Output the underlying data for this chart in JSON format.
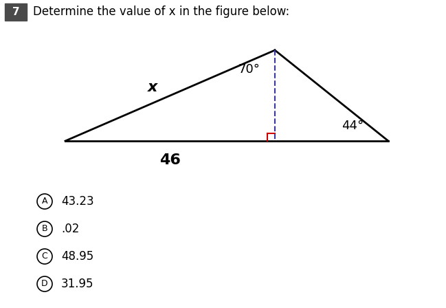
{
  "title_number": "7",
  "title_text": "Determine the value of x in the figure below:",
  "title_number_bg": "#4a4a4a",
  "title_number_color": "#ffffff",
  "base_label": "46",
  "left_side_label": "x",
  "angle1_label": "70°",
  "angle2_label": "44°",
  "triangle_color": "#000000",
  "altitude_color": "#3333cc",
  "right_angle_color": "#cc0000",
  "choices": [
    {
      "letter": "A",
      "value": "43.23"
    },
    {
      "letter": "B",
      "value": ".02"
    },
    {
      "letter": "C",
      "value": "48.95"
    },
    {
      "letter": "D",
      "value": "31.95"
    }
  ],
  "bg_color": "#ffffff",
  "triangle_lw": 2.0,
  "altitude_lw": 1.5,
  "font_size_labels": 13,
  "font_size_choices": 12,
  "font_size_title": 12
}
